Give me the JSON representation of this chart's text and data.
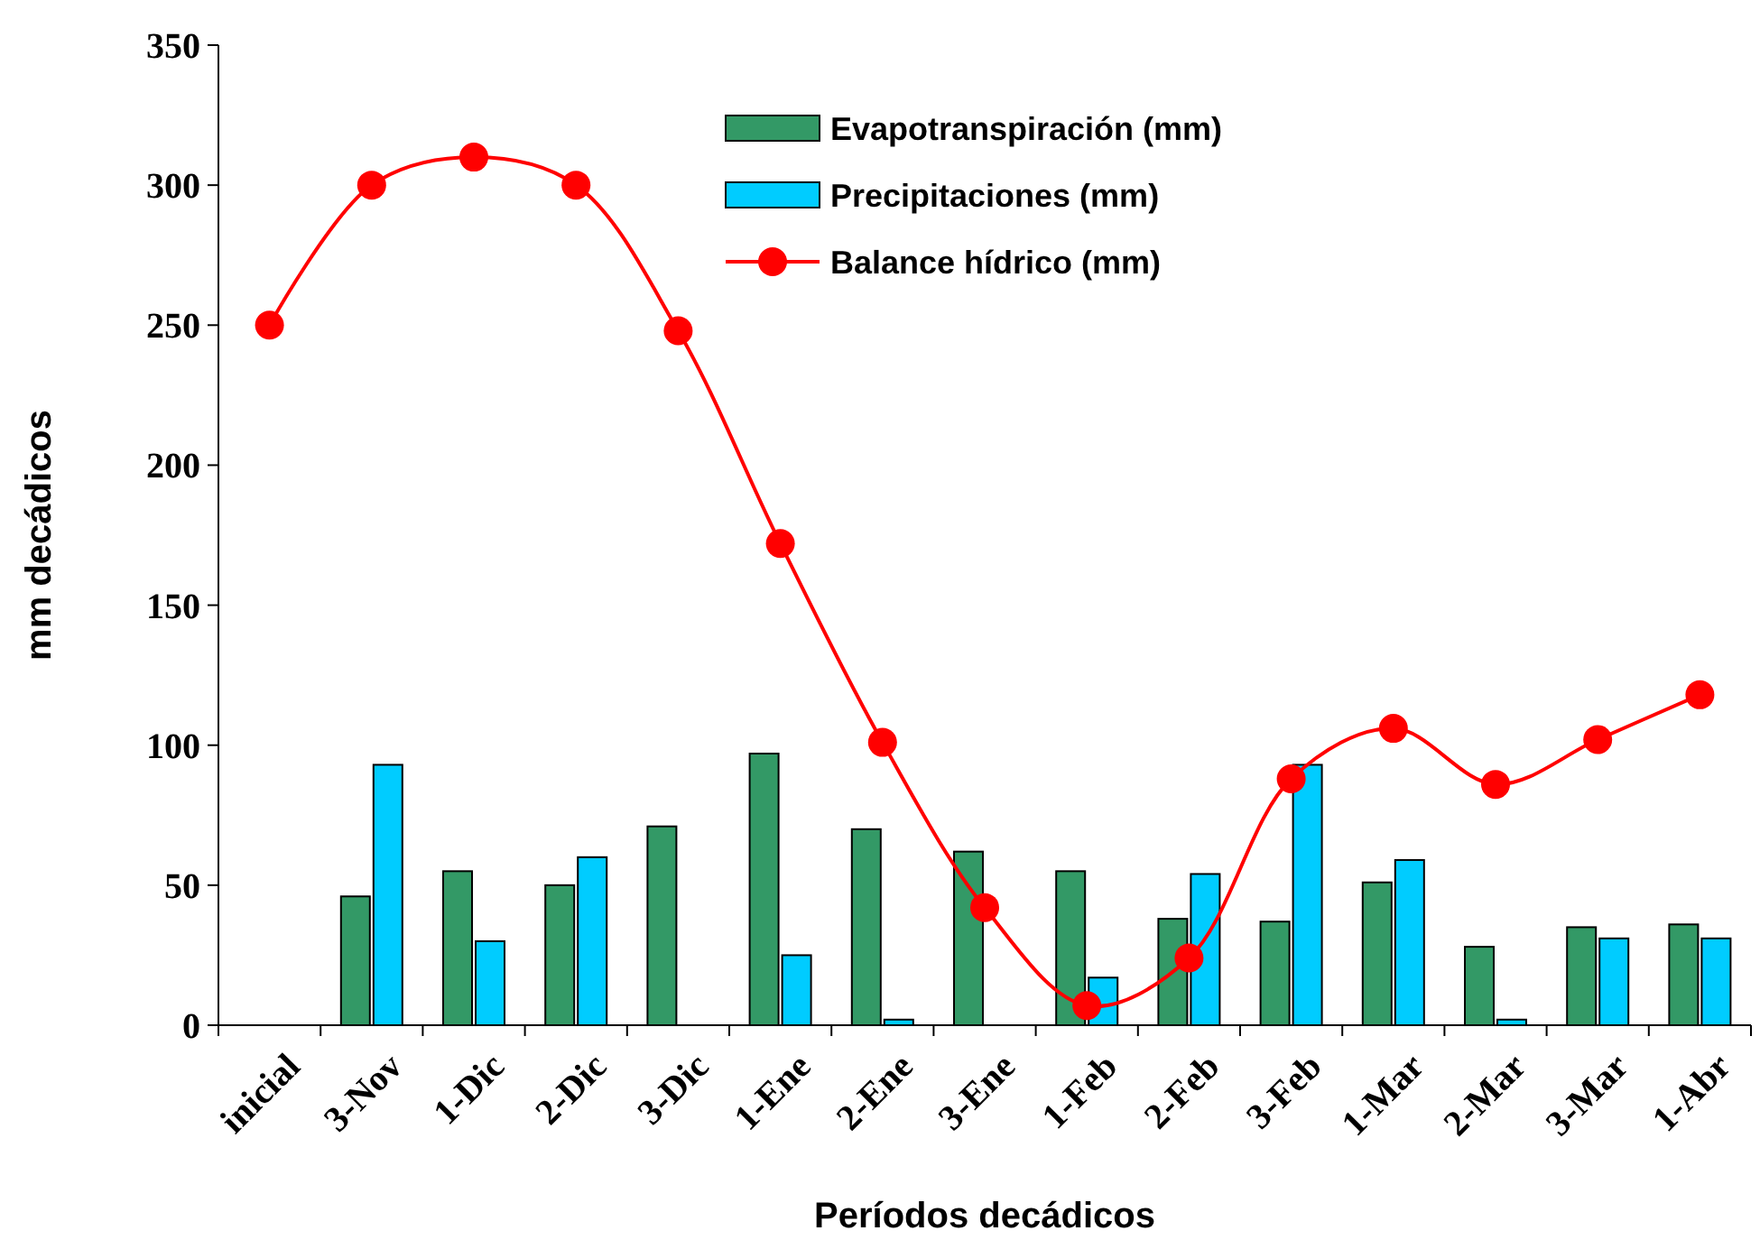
{
  "chart_data": {
    "type": "bar",
    "xlabel": "Períodos decádicos",
    "ylabel": "mm decádicos",
    "categories": [
      "inicial",
      "3-Nov",
      "1-Dic",
      "2-Dic",
      "3-Dic",
      "1-Ene",
      "2-Ene",
      "3-Ene",
      "1-Feb",
      "2-Feb",
      "3-Feb",
      "1-Mar",
      "2-Mar",
      "3-Mar",
      "1-Abr"
    ],
    "series": [
      {
        "name": "Evapotranspiración (mm)",
        "color": "#339966",
        "values": [
          null,
          46,
          55,
          50,
          71,
          97,
          70,
          62,
          55,
          38,
          37,
          51,
          28,
          35,
          36
        ]
      },
      {
        "name": "Precipitaciones (mm)",
        "color": "#00ccff",
        "values": [
          null,
          93,
          30,
          60,
          null,
          25,
          2,
          null,
          17,
          54,
          93,
          59,
          2,
          31,
          31
        ]
      },
      {
        "name": "Balance hídrico (mm)",
        "type": "line",
        "color": "#ff0000",
        "marker": "circle",
        "values": [
          250,
          300,
          310,
          300,
          248,
          172,
          101,
          42,
          7,
          24,
          88,
          106,
          86,
          102,
          118
        ]
      }
    ],
    "ylim": [
      0,
      350
    ],
    "yticks": [
      0,
      50,
      100,
      150,
      200,
      250,
      300,
      350
    ],
    "legend": "top",
    "grid": false
  }
}
